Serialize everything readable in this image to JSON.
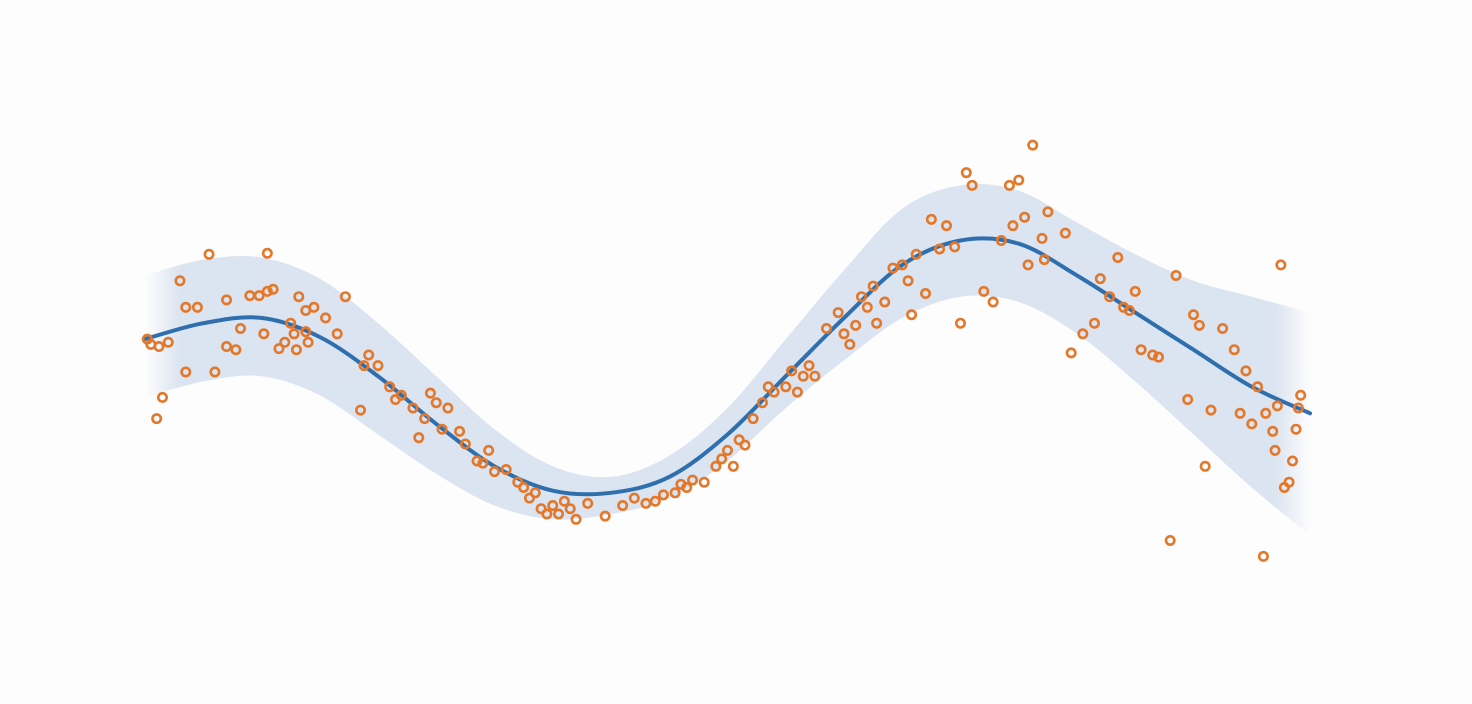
{
  "chart_data": {
    "type": "scatter",
    "title": "",
    "xlabel": "",
    "ylabel": "",
    "xlim": [
      0,
      10
    ],
    "ylim": [
      -2.5,
      2.5
    ],
    "grid": false,
    "legend": "none",
    "colors": {
      "fit_line": "#2f6fad",
      "band": "#c9d6ea",
      "points": "#e4782a"
    },
    "series": [
      {
        "type": "line",
        "x": [
          0.0,
          0.5,
          1.0,
          1.5,
          2.0,
          2.5,
          3.0,
          3.5,
          4.0,
          4.5,
          5.0,
          5.5,
          6.0,
          6.5,
          7.0,
          7.5,
          8.0,
          8.5,
          9.0,
          9.5,
          10.0
        ],
        "y": [
          0.15,
          0.3,
          0.35,
          0.17,
          -0.2,
          -0.65,
          -1.05,
          -1.28,
          -1.3,
          -1.15,
          -0.75,
          -0.2,
          0.35,
          0.85,
          1.08,
          1.05,
          0.75,
          0.4,
          0.05,
          -0.3,
          -0.55
        ]
      },
      {
        "type": "band",
        "x": [
          0.0,
          0.5,
          1.0,
          1.5,
          2.0,
          2.5,
          3.0,
          3.5,
          4.0,
          4.5,
          5.0,
          5.5,
          6.0,
          6.5,
          7.0,
          7.5,
          8.0,
          8.5,
          9.0,
          9.5,
          10.0
        ],
        "upper": [
          0.75,
          0.9,
          0.92,
          0.72,
          0.3,
          -0.2,
          -0.7,
          -1.05,
          -1.15,
          -0.95,
          -0.5,
          0.15,
          0.8,
          1.38,
          1.6,
          1.55,
          1.25,
          0.95,
          0.7,
          0.55,
          0.4
        ],
        "lower": [
          -0.4,
          -0.25,
          -0.2,
          -0.38,
          -0.75,
          -1.12,
          -1.42,
          -1.55,
          -1.5,
          -1.35,
          -1.0,
          -0.5,
          -0.05,
          0.35,
          0.55,
          0.5,
          0.2,
          -0.25,
          -0.75,
          -1.25,
          -1.7
        ]
      },
      {
        "type": "scatter",
        "points": [
          [
            0.02,
            0.15
          ],
          [
            0.05,
            0.1
          ],
          [
            0.1,
            -0.6
          ],
          [
            0.15,
            -0.4
          ],
          [
            0.12,
            0.08
          ],
          [
            0.2,
            0.12
          ],
          [
            0.35,
            -0.16
          ],
          [
            0.3,
            0.7
          ],
          [
            0.35,
            0.45
          ],
          [
            0.45,
            0.45
          ],
          [
            0.55,
            0.95
          ],
          [
            0.6,
            -0.16
          ],
          [
            0.7,
            0.52
          ],
          [
            0.7,
            0.08
          ],
          [
            0.78,
            0.05
          ],
          [
            0.82,
            0.25
          ],
          [
            0.9,
            0.56
          ],
          [
            0.98,
            0.56
          ],
          [
            1.05,
            0.6
          ],
          [
            1.02,
            0.2
          ],
          [
            1.05,
            0.96
          ],
          [
            1.1,
            0.62
          ],
          [
            1.15,
            0.06
          ],
          [
            1.2,
            0.12
          ],
          [
            1.25,
            0.3
          ],
          [
            1.28,
            0.2
          ],
          [
            1.3,
            0.05
          ],
          [
            1.32,
            0.55
          ],
          [
            1.38,
            0.42
          ],
          [
            1.38,
            0.22
          ],
          [
            1.4,
            0.12
          ],
          [
            1.45,
            0.45
          ],
          [
            1.55,
            0.35
          ],
          [
            1.65,
            0.2
          ],
          [
            1.72,
            0.55
          ],
          [
            1.85,
            -0.52
          ],
          [
            1.88,
            -0.1
          ],
          [
            1.92,
            0.0
          ],
          [
            2.0,
            -0.1
          ],
          [
            2.1,
            -0.3
          ],
          [
            2.15,
            -0.42
          ],
          [
            2.2,
            -0.38
          ],
          [
            2.3,
            -0.5
          ],
          [
            2.35,
            -0.78
          ],
          [
            2.4,
            -0.6
          ],
          [
            2.45,
            -0.36
          ],
          [
            2.5,
            -0.45
          ],
          [
            2.55,
            -0.7
          ],
          [
            2.6,
            -0.5
          ],
          [
            2.7,
            -0.72
          ],
          [
            2.75,
            -0.84
          ],
          [
            2.85,
            -1.0
          ],
          [
            2.9,
            -1.02
          ],
          [
            2.95,
            -0.9
          ],
          [
            3.0,
            -1.1
          ],
          [
            3.1,
            -1.08
          ],
          [
            3.2,
            -1.2
          ],
          [
            3.25,
            -1.25
          ],
          [
            3.3,
            -1.35
          ],
          [
            3.35,
            -1.3
          ],
          [
            3.4,
            -1.45
          ],
          [
            3.45,
            -1.5
          ],
          [
            3.5,
            -1.42
          ],
          [
            3.55,
            -1.5
          ],
          [
            3.6,
            -1.38
          ],
          [
            3.65,
            -1.45
          ],
          [
            3.7,
            -1.55
          ],
          [
            3.8,
            -1.4
          ],
          [
            3.95,
            -1.52
          ],
          [
            4.1,
            -1.42
          ],
          [
            4.2,
            -1.35
          ],
          [
            4.3,
            -1.4
          ],
          [
            4.38,
            -1.38
          ],
          [
            4.45,
            -1.32
          ],
          [
            4.55,
            -1.3
          ],
          [
            4.6,
            -1.22
          ],
          [
            4.65,
            -1.25
          ],
          [
            4.7,
            -1.18
          ],
          [
            4.8,
            -1.2
          ],
          [
            4.9,
            -1.05
          ],
          [
            4.95,
            -0.98
          ],
          [
            5.0,
            -0.9
          ],
          [
            5.05,
            -1.05
          ],
          [
            5.1,
            -0.8
          ],
          [
            5.15,
            -0.85
          ],
          [
            5.22,
            -0.6
          ],
          [
            5.3,
            -0.45
          ],
          [
            5.35,
            -0.3
          ],
          [
            5.4,
            -0.35
          ],
          [
            5.5,
            -0.3
          ],
          [
            5.55,
            -0.15
          ],
          [
            5.6,
            -0.35
          ],
          [
            5.65,
            -0.2
          ],
          [
            5.7,
            -0.1
          ],
          [
            5.75,
            -0.2
          ],
          [
            5.85,
            0.25
          ],
          [
            5.95,
            0.4
          ],
          [
            6.0,
            0.2
          ],
          [
            6.05,
            0.1
          ],
          [
            6.1,
            0.28
          ],
          [
            6.15,
            0.55
          ],
          [
            6.2,
            0.45
          ],
          [
            6.25,
            0.65
          ],
          [
            6.28,
            0.3
          ],
          [
            6.35,
            0.5
          ],
          [
            6.42,
            0.82
          ],
          [
            6.5,
            0.85
          ],
          [
            6.55,
            0.7
          ],
          [
            6.58,
            0.38
          ],
          [
            6.62,
            0.95
          ],
          [
            6.7,
            0.58
          ],
          [
            6.75,
            1.28
          ],
          [
            6.82,
            1.0
          ],
          [
            6.88,
            1.22
          ],
          [
            6.95,
            1.02
          ],
          [
            7.0,
            0.3
          ],
          [
            7.05,
            1.72
          ],
          [
            7.1,
            1.6
          ],
          [
            7.2,
            0.6
          ],
          [
            7.28,
            0.5
          ],
          [
            7.35,
            1.08
          ],
          [
            7.42,
            1.6
          ],
          [
            7.45,
            1.22
          ],
          [
            7.5,
            1.65
          ],
          [
            7.55,
            1.3
          ],
          [
            7.58,
            0.85
          ],
          [
            7.62,
            1.98
          ],
          [
            7.7,
            1.1
          ],
          [
            7.72,
            0.9
          ],
          [
            7.75,
            1.35
          ],
          [
            7.9,
            1.15
          ],
          [
            7.95,
            0.02
          ],
          [
            8.05,
            0.2
          ],
          [
            8.15,
            0.3
          ],
          [
            8.2,
            0.72
          ],
          [
            8.28,
            0.55
          ],
          [
            8.35,
            0.92
          ],
          [
            8.4,
            0.45
          ],
          [
            8.45,
            0.42
          ],
          [
            8.5,
            0.6
          ],
          [
            8.55,
            0.05
          ],
          [
            8.65,
            0.0
          ],
          [
            8.7,
            -0.02
          ],
          [
            8.8,
            -1.75
          ],
          [
            8.85,
            0.75
          ],
          [
            8.95,
            -0.42
          ],
          [
            9.0,
            0.38
          ],
          [
            9.05,
            0.28
          ],
          [
            9.1,
            -1.05
          ],
          [
            9.15,
            -0.52
          ],
          [
            9.25,
            0.25
          ],
          [
            9.35,
            0.05
          ],
          [
            9.4,
            -0.55
          ],
          [
            9.45,
            -0.15
          ],
          [
            9.5,
            -0.65
          ],
          [
            9.55,
            -0.3
          ],
          [
            9.6,
            -1.9
          ],
          [
            9.62,
            -0.55
          ],
          [
            9.68,
            -0.72
          ],
          [
            9.7,
            -0.9
          ],
          [
            9.72,
            -0.48
          ],
          [
            9.75,
            0.85
          ],
          [
            9.78,
            -1.25
          ],
          [
            9.82,
            -1.2
          ],
          [
            9.85,
            -1.0
          ],
          [
            9.88,
            -0.7
          ],
          [
            9.9,
            -0.5
          ],
          [
            9.92,
            -0.38
          ]
        ]
      }
    ]
  }
}
